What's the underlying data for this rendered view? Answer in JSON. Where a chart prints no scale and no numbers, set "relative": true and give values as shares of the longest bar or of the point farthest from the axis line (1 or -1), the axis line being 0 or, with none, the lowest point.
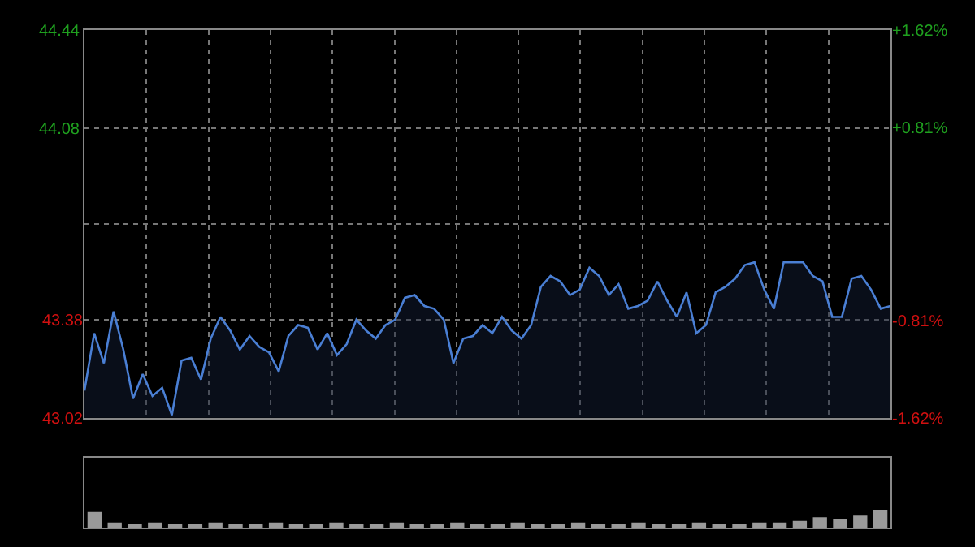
{
  "chart_data": [
    {
      "type": "area",
      "categories": [
        null,
        null,
        null,
        null,
        null,
        null,
        null,
        null,
        null,
        null,
        null,
        null,
        null,
        null,
        null,
        null,
        null,
        null,
        null,
        null,
        null,
        null,
        null,
        null,
        null,
        null,
        null,
        null,
        null,
        null,
        null,
        null,
        null,
        null,
        null,
        null,
        null,
        null,
        null,
        null,
        null,
        null,
        null,
        null,
        null,
        null,
        null,
        null,
        null,
        null,
        null,
        null,
        null,
        null,
        null,
        null,
        null,
        null,
        null,
        null,
        null,
        null,
        null,
        null,
        null,
        null,
        null,
        null,
        null,
        null,
        null,
        null,
        null,
        null,
        null,
        null,
        null,
        null,
        null,
        null,
        null,
        null,
        null,
        null
      ],
      "series": [
        {
          "color": "#4a7fd4",
          "values": [
            43.12,
            43.33,
            43.22,
            43.41,
            43.27,
            43.09,
            43.18,
            43.1,
            43.13,
            43.03,
            43.23,
            43.24,
            43.16,
            43.31,
            43.39,
            43.34,
            43.27,
            43.32,
            43.28,
            43.26,
            43.19,
            43.32,
            43.36,
            43.35,
            43.27,
            43.33,
            43.25,
            43.29,
            43.38,
            43.34,
            43.31,
            43.36,
            43.38,
            43.46,
            43.47,
            43.43,
            43.42,
            43.38,
            43.22,
            43.31,
            43.32,
            43.36,
            43.33,
            43.39,
            43.34,
            43.31,
            43.36,
            43.5,
            43.54,
            43.52,
            43.47,
            43.49,
            43.57,
            43.54,
            43.47,
            43.51,
            43.42,
            43.43,
            43.45,
            43.52,
            43.45,
            43.39,
            43.48,
            43.33,
            43.36,
            43.48,
            43.5,
            43.53,
            43.58,
            43.59,
            43.49,
            43.42,
            43.59,
            43.59,
            43.59,
            43.54,
            43.52,
            43.39,
            43.39,
            43.53,
            43.54,
            43.49,
            43.42,
            43.43
          ]
        }
      ],
      "ylim": [
        43.02,
        44.44
      ],
      "yticks": [
        43.02,
        43.38,
        {
          "value": 43.73,
          "label": null
        },
        44.08,
        44.44
      ],
      "y2lim": [
        -1.62,
        1.62
      ],
      "y2ticks": [
        {
          "value": -1.62,
          "label": "-1.62%"
        },
        {
          "value": -0.81,
          "label": "-0.81%"
        },
        {
          "value": 0.81,
          "label": "+0.81%"
        },
        {
          "value": 1.62,
          "label": "+1.62%"
        }
      ],
      "tick_labels": "y",
      "grid": true,
      "legend": false
    },
    {
      "type": "bar",
      "relative": true,
      "legend": false,
      "tick_labels": false,
      "categories": [
        null,
        null,
        null,
        null,
        null,
        null,
        null,
        null,
        null,
        null,
        null,
        null,
        null,
        null,
        null,
        null,
        null,
        null,
        null,
        null,
        null,
        null,
        null,
        null,
        null,
        null,
        null,
        null,
        null,
        null,
        null,
        null,
        null,
        null,
        null,
        null,
        null,
        null,
        null,
        null
      ],
      "series": [
        {
          "color": "#9a9a9a",
          "values": [
            0.9,
            0.3,
            0.2,
            0.3,
            0.2,
            0.2,
            0.3,
            0.2,
            0.2,
            0.3,
            0.2,
            0.2,
            0.3,
            0.2,
            0.2,
            0.3,
            0.2,
            0.2,
            0.3,
            0.2,
            0.2,
            0.3,
            0.2,
            0.2,
            0.3,
            0.2,
            0.2,
            0.3,
            0.2,
            0.2,
            0.3,
            0.2,
            0.2,
            0.3,
            0.3,
            0.4,
            0.6,
            0.5,
            0.7,
            1
          ]
        }
      ]
    }
  ]
}
